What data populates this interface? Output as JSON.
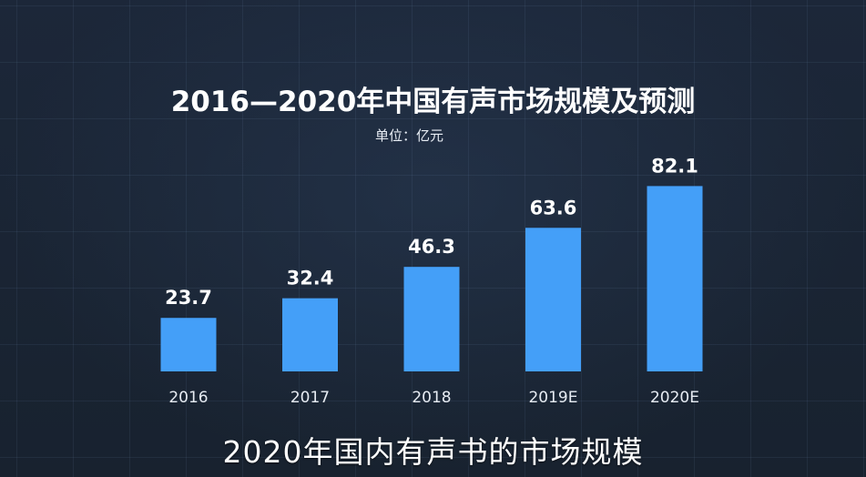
{
  "title": "2016—2020年中国有声市场规模及预测",
  "unit_label": "单位：亿元",
  "caption": "2020年国内有声书的市场规模",
  "colors": {
    "bar": "#449ff8",
    "background": "#1b2638",
    "text": "#ffffff"
  },
  "chart_data": {
    "type": "bar",
    "title": "2016—2020年中国有声市场规模及预测",
    "ylabel": "单位：亿元",
    "xlabel": "",
    "categories": [
      "2016",
      "2017",
      "2018",
      "2019E",
      "2020E"
    ],
    "values": [
      23.7,
      32.4,
      46.3,
      63.6,
      82.1
    ],
    "value_labels": [
      "23.7",
      "32.4",
      "46.3",
      "63.6",
      "82.1"
    ],
    "ylim": [
      0,
      100
    ],
    "grid": false,
    "legend": "none"
  }
}
